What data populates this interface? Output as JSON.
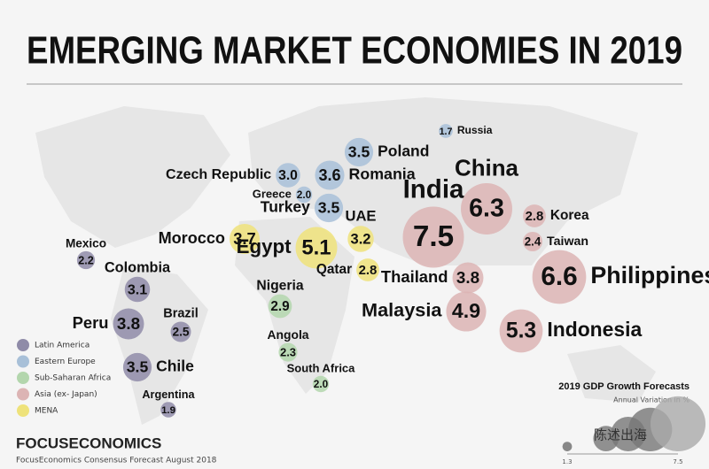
{
  "title": "EMERGING MARKET ECONOMIES IN 2019",
  "groups": [
    {
      "name": "Latin America",
      "color": "#8f8ba8"
    },
    {
      "name": "Eastern Europe",
      "color": "#a8c0d8"
    },
    {
      "name": "Sub-Saharan Africa",
      "color": "#b3d6ad"
    },
    {
      "name": "Asia (ex- Japan)",
      "color": "#dcb4b4"
    },
    {
      "name": "MENA",
      "color": "#eee27a"
    }
  ],
  "countries": [
    {
      "name": "Russia",
      "value": 1.7,
      "label": "1.7",
      "group": 1
    },
    {
      "name": "Poland",
      "value": 3.5,
      "label": "3.5",
      "group": 1
    },
    {
      "name": "Romania",
      "value": 3.6,
      "label": "3.6",
      "group": 1
    },
    {
      "name": "Czech Republic",
      "value": 3.0,
      "label": "3.0",
      "group": 1
    },
    {
      "name": "Greece",
      "value": 2.0,
      "label": "2.0",
      "group": 1
    },
    {
      "name": "Turkey",
      "value": 3.5,
      "label": "3.5",
      "group": 1
    },
    {
      "name": "UAE",
      "value": 3.2,
      "label": "3.2",
      "group": 4
    },
    {
      "name": "Morocco",
      "value": 3.7,
      "label": "3.7",
      "group": 4
    },
    {
      "name": "Egypt",
      "value": 5.1,
      "label": "5.1",
      "group": 4
    },
    {
      "name": "Qatar",
      "value": 2.8,
      "label": "2.8",
      "group": 4
    },
    {
      "name": "India",
      "value": 7.5,
      "label": "7.5",
      "group": 3
    },
    {
      "name": "China",
      "value": 6.3,
      "label": "6.3",
      "group": 3
    },
    {
      "name": "Korea",
      "value": 2.8,
      "label": "2.8",
      "group": 3
    },
    {
      "name": "Taiwan",
      "value": 2.4,
      "label": "2.4",
      "group": 3
    },
    {
      "name": "Philippines",
      "value": 6.6,
      "label": "6.6",
      "group": 3
    },
    {
      "name": "Thailand",
      "value": 3.8,
      "label": "3.8",
      "group": 3
    },
    {
      "name": "Malaysia",
      "value": 4.9,
      "label": "4.9",
      "group": 3
    },
    {
      "name": "Indonesia",
      "value": 5.3,
      "label": "5.3",
      "group": 3
    },
    {
      "name": "Mexico",
      "value": 2.2,
      "label": "2.2",
      "group": 0
    },
    {
      "name": "Colombia",
      "value": 3.1,
      "label": "3.1",
      "group": 0
    },
    {
      "name": "Peru",
      "value": 3.8,
      "label": "3.8",
      "group": 0
    },
    {
      "name": "Brazil",
      "value": 2.5,
      "label": "2.5",
      "group": 0
    },
    {
      "name": "Chile",
      "value": 3.5,
      "label": "3.5",
      "group": 0
    },
    {
      "name": "Argentina",
      "value": 1.9,
      "label": "1.9",
      "group": 0
    },
    {
      "name": "Nigeria",
      "value": 2.9,
      "label": "2.9",
      "group": 2
    },
    {
      "name": "Angola",
      "value": 2.3,
      "label": "2.3",
      "group": 2
    },
    {
      "name": "South Africa",
      "value": 2.0,
      "label": "2.0",
      "group": 2
    }
  ],
  "size_legend": {
    "title": "2019 GDP Growth Forecasts",
    "subtitle": "Annual Variation in %",
    "min": 1.3,
    "max": 7.5
  },
  "brand": "FOCUSECONOMICS",
  "source": "FocusEconomics Consensus Forecast August 2018",
  "watermark": "陈述出海"
}
